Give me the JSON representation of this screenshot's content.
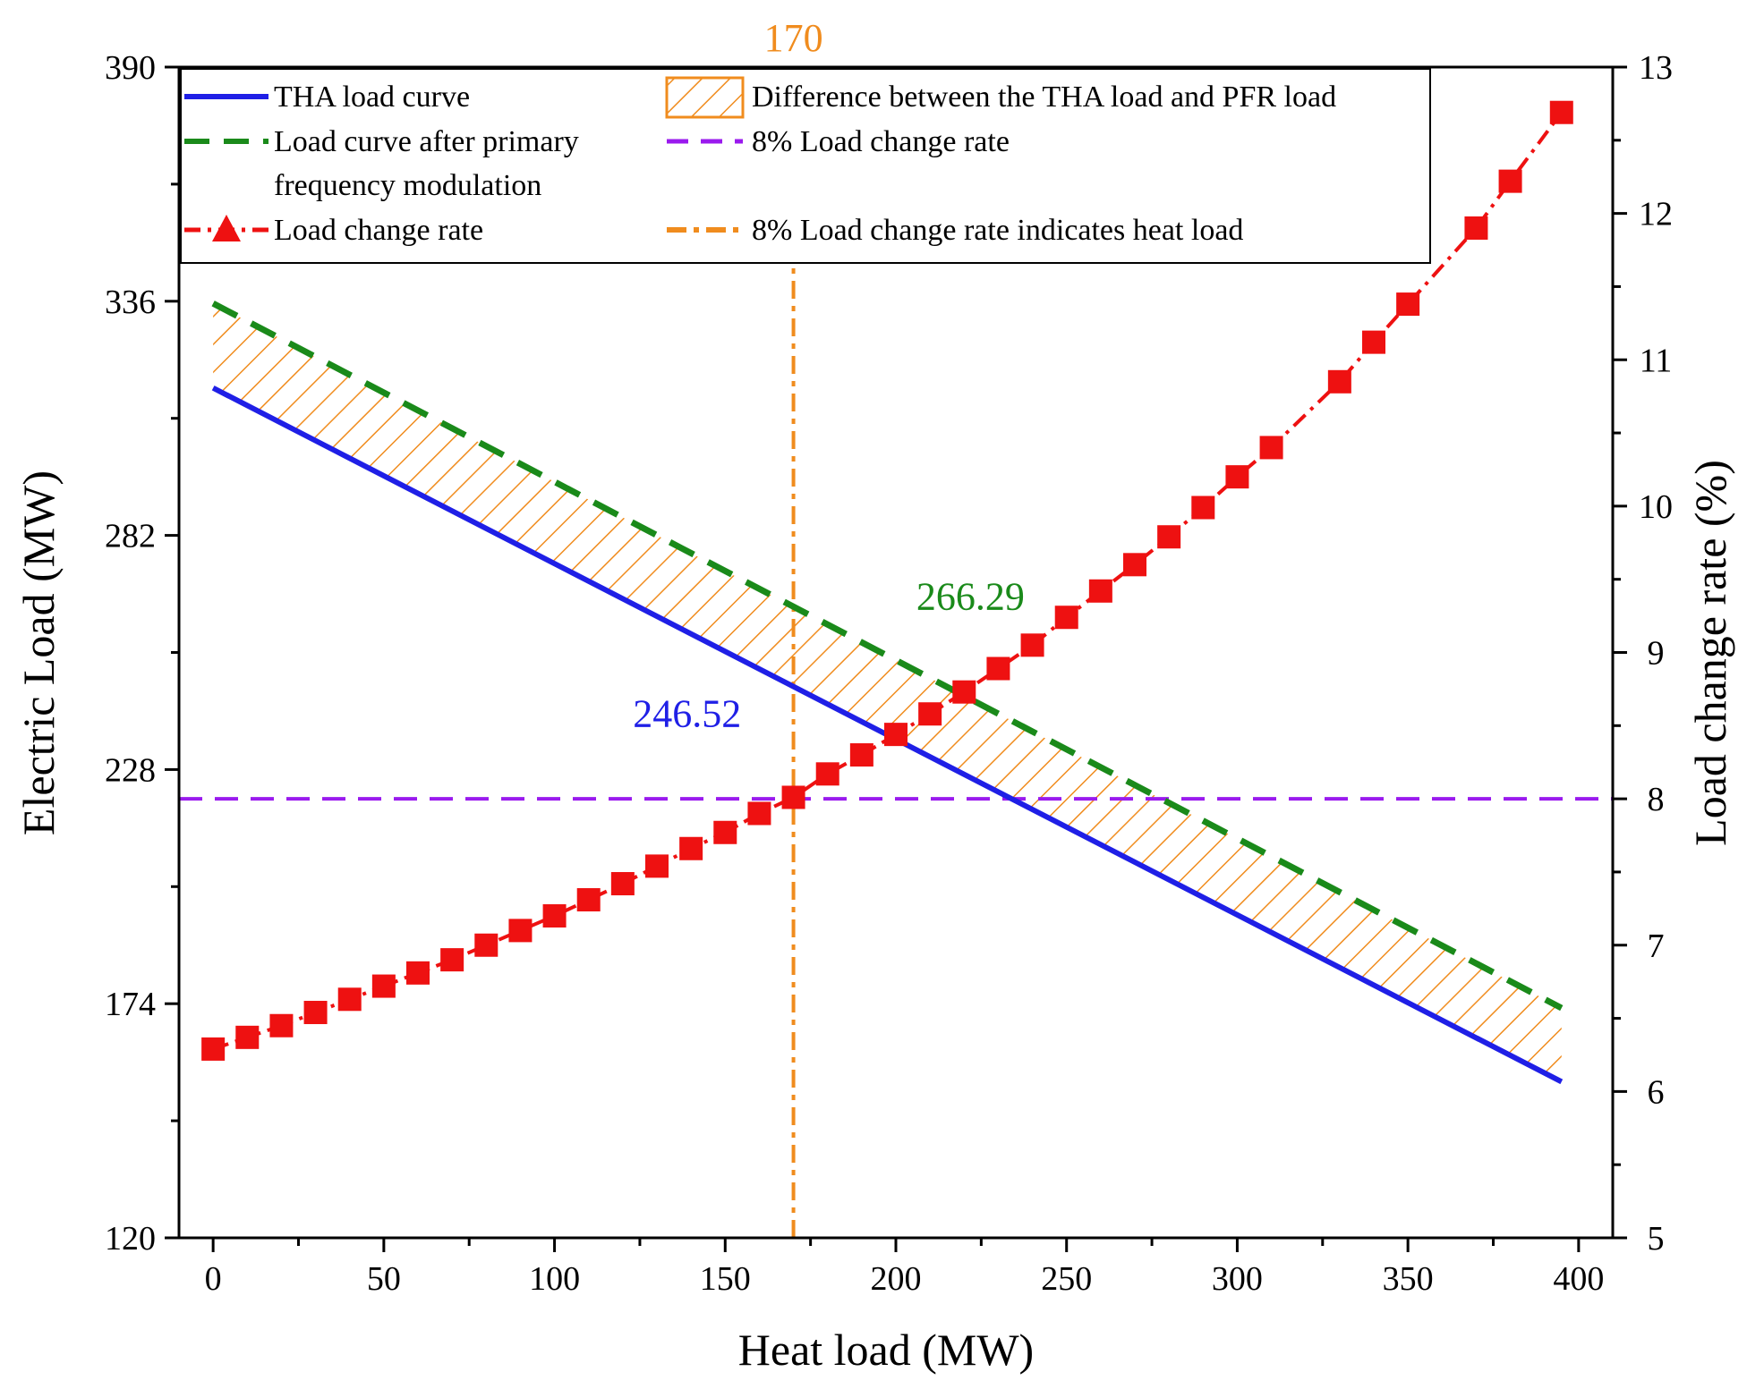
{
  "chart_data": {
    "type": "line",
    "title": "",
    "xlabel": "Heat load (MW)",
    "ylabel": "Electric Load (MW)",
    "y2label": "Load change rate (%)",
    "xlim": [
      -10,
      410
    ],
    "ylim": [
      120,
      390
    ],
    "y2lim": [
      5,
      13
    ],
    "x_ticks": [
      0,
      50,
      100,
      150,
      200,
      250,
      300,
      350,
      400
    ],
    "y_ticks": [
      120,
      174,
      228,
      282,
      336,
      390
    ],
    "y2_ticks": [
      5,
      6,
      7,
      8,
      9,
      10,
      11,
      12,
      13
    ],
    "series": [
      {
        "name": "THA load curve",
        "axis": "left",
        "color": "#1f1fe6",
        "style": "solid",
        "x": [
          0,
          395
        ],
        "values": [
          316,
          156
        ]
      },
      {
        "name": "Load curve after primary frequency modulation",
        "axis": "left",
        "color": "#1a8a1a",
        "style": "dashed",
        "x": [
          0,
          395
        ],
        "values": [
          335.5,
          173
        ]
      },
      {
        "name": "Load change rate",
        "axis": "right",
        "color": "#ee1111",
        "style": "dash-dot",
        "marker": "square",
        "x": [
          0,
          10,
          20,
          30,
          40,
          50,
          60,
          70,
          80,
          90,
          100,
          110,
          120,
          130,
          140,
          150,
          160,
          170,
          180,
          190,
          200,
          210,
          220,
          230,
          240,
          250,
          260,
          270,
          280,
          290,
          300,
          310,
          330,
          340,
          350,
          370,
          380,
          395
        ],
        "values": [
          6.29,
          6.37,
          6.45,
          6.54,
          6.63,
          6.72,
          6.81,
          6.9,
          7.0,
          7.1,
          7.2,
          7.31,
          7.42,
          7.54,
          7.66,
          7.77,
          7.9,
          8.01,
          8.17,
          8.3,
          8.44,
          8.58,
          8.73,
          8.89,
          9.05,
          9.24,
          9.42,
          9.6,
          9.79,
          9.99,
          10.2,
          10.4,
          10.85,
          11.12,
          11.38,
          11.9,
          12.22,
          12.69
        ]
      },
      {
        "name": "8% Load change rate",
        "axis": "right",
        "color": "#9a1aee",
        "style": "dashed",
        "x": [
          -10,
          410
        ],
        "values": [
          8,
          8
        ]
      },
      {
        "name": "8% Load change rate indicates heat load",
        "color": "#f08c1e",
        "style": "dash-dot",
        "x": [
          170,
          170
        ],
        "values": [
          120,
          390
        ]
      }
    ],
    "shaded_region": {
      "name": "Difference between the THA load and PFR load",
      "color": "#f08c1e",
      "pattern": "hatch",
      "between": [
        "THA load curve",
        "Load curve after primary frequency modulation"
      ]
    },
    "legend": [
      {
        "label": "THA load curve",
        "key": "tha"
      },
      {
        "label": "Difference between the THA load and PFR load",
        "key": "hatch"
      },
      {
        "label": "Load curve after primary",
        "label2": "frequency modulation",
        "key": "pfr"
      },
      {
        "label": "8% Load change rate",
        "key": "rate8"
      },
      {
        "label": "Load change rate",
        "key": "rate"
      },
      {
        "label": "8% Load change rate indicates heat load",
        "key": "vline"
      }
    ],
    "annotations": [
      {
        "text": "170",
        "x": 170,
        "y": 390,
        "axis": "left",
        "color": "#f08c1e",
        "anchor": "top-outside"
      },
      {
        "text": "266.29",
        "x": 206,
        "y": 268,
        "axis": "left",
        "color": "#1a8a1a"
      },
      {
        "text": "246.52",
        "x": 123,
        "y": 241,
        "axis": "left",
        "color": "#1f1fe6"
      }
    ],
    "legend_position": "top",
    "grid": false
  }
}
